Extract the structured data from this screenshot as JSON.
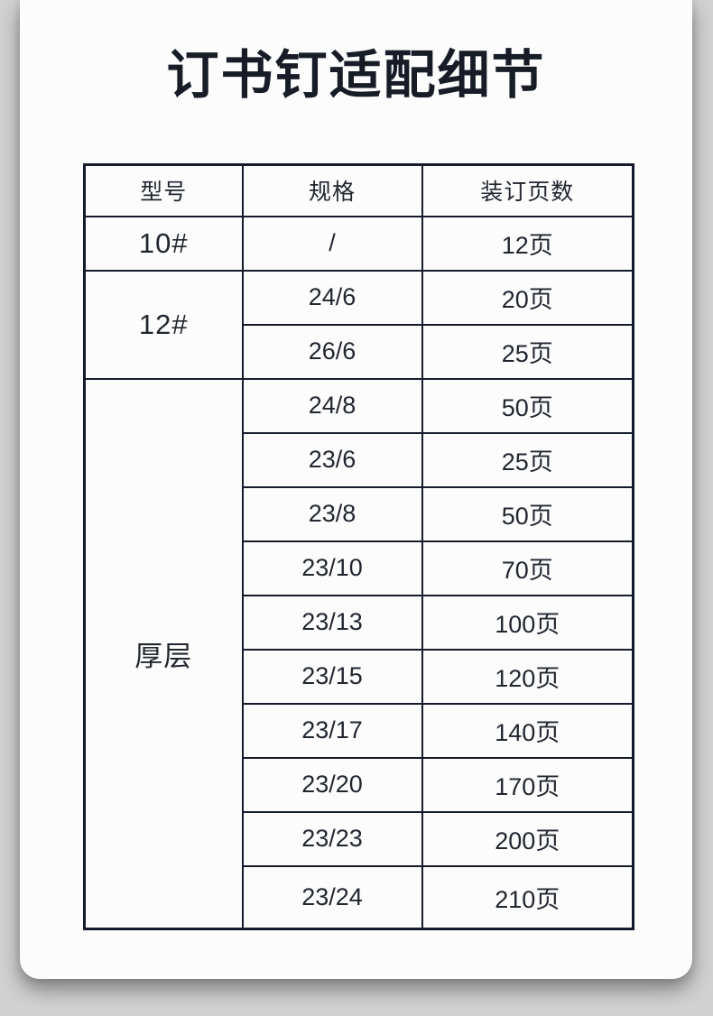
{
  "page": {
    "title": "订书钉适配细节"
  },
  "colors": {
    "page_background": "#d1d1d1",
    "card_background": "#fcfcfd",
    "ink": "#21262f",
    "border": "#161b2b"
  },
  "table": {
    "headers": [
      "型号",
      "规格",
      "装订页数"
    ],
    "groups": [
      {
        "model": "10#",
        "rows": [
          {
            "spec": "/",
            "pages": "12页"
          }
        ]
      },
      {
        "model": "12#",
        "rows": [
          {
            "spec": "24/6",
            "pages": "20页"
          },
          {
            "spec": "26/6",
            "pages": "25页"
          }
        ]
      },
      {
        "model": "厚层",
        "rows": [
          {
            "spec": "24/8",
            "pages": "50页"
          },
          {
            "spec": "23/6",
            "pages": "25页"
          },
          {
            "spec": "23/8",
            "pages": "50页"
          },
          {
            "spec": "23/10",
            "pages": "70页"
          },
          {
            "spec": "23/13",
            "pages": "100页"
          },
          {
            "spec": "23/15",
            "pages": "120页"
          },
          {
            "spec": "23/17",
            "pages": "140页"
          },
          {
            "spec": "23/20",
            "pages": "170页"
          },
          {
            "spec": "23/23",
            "pages": "200页"
          },
          {
            "spec": "23/24",
            "pages": "210页"
          }
        ]
      }
    ]
  }
}
